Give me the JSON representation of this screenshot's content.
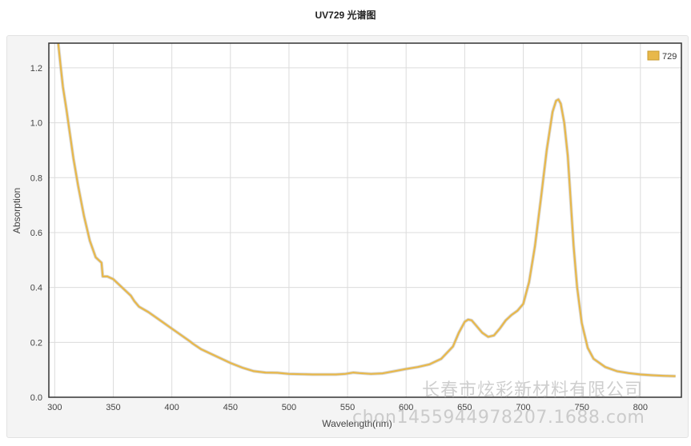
{
  "chart_data": {
    "type": "line",
    "title": "UV729 光谱图",
    "xlabel": "Wavelength(nm)",
    "ylabel": "Absorption",
    "xlim": [
      295,
      835
    ],
    "ylim": [
      0,
      1.29
    ],
    "xticks": [
      300,
      350,
      400,
      450,
      500,
      550,
      600,
      650,
      700,
      750,
      800
    ],
    "yticks": [
      0.0,
      0.2,
      0.4,
      0.6,
      0.8,
      1.0,
      1.2
    ],
    "grid": true,
    "legend_position": "top-right",
    "series": [
      {
        "name": "729",
        "color": "#E8B84A",
        "x": [
          303,
          305,
          307,
          310,
          313,
          316,
          320,
          325,
          330,
          335,
          340,
          341,
          343,
          345,
          350,
          355,
          360,
          365,
          368,
          372,
          380,
          390,
          400,
          410,
          415,
          418,
          425,
          435,
          450,
          460,
          470,
          480,
          490,
          500,
          520,
          540,
          548,
          555,
          560,
          570,
          580,
          590,
          600,
          610,
          620,
          630,
          640,
          645,
          650,
          653,
          656,
          660,
          665,
          670,
          675,
          680,
          685,
          690,
          695,
          700,
          705,
          710,
          715,
          720,
          725,
          728,
          730,
          732,
          735,
          738,
          740,
          743,
          746,
          750,
          755,
          760,
          770,
          780,
          790,
          800,
          810,
          820,
          830
        ],
        "y": [
          1.29,
          1.21,
          1.13,
          1.05,
          0.96,
          0.87,
          0.77,
          0.66,
          0.57,
          0.51,
          0.49,
          0.44,
          0.44,
          0.44,
          0.43,
          0.41,
          0.39,
          0.37,
          0.35,
          0.33,
          0.31,
          0.28,
          0.25,
          0.22,
          0.205,
          0.195,
          0.175,
          0.155,
          0.125,
          0.108,
          0.095,
          0.09,
          0.089,
          0.085,
          0.083,
          0.083,
          0.085,
          0.09,
          0.088,
          0.085,
          0.087,
          0.095,
          0.103,
          0.11,
          0.12,
          0.14,
          0.185,
          0.235,
          0.275,
          0.283,
          0.28,
          0.26,
          0.235,
          0.22,
          0.225,
          0.25,
          0.28,
          0.3,
          0.315,
          0.34,
          0.42,
          0.55,
          0.72,
          0.9,
          1.04,
          1.08,
          1.085,
          1.07,
          1.0,
          0.88,
          0.75,
          0.55,
          0.4,
          0.27,
          0.18,
          0.14,
          0.11,
          0.095,
          0.088,
          0.083,
          0.08,
          0.078,
          0.077
        ]
      }
    ]
  },
  "watermarks": {
    "company": "长春市炫彩新材料有限公司",
    "site": "chon1455944978207.1688.com"
  }
}
